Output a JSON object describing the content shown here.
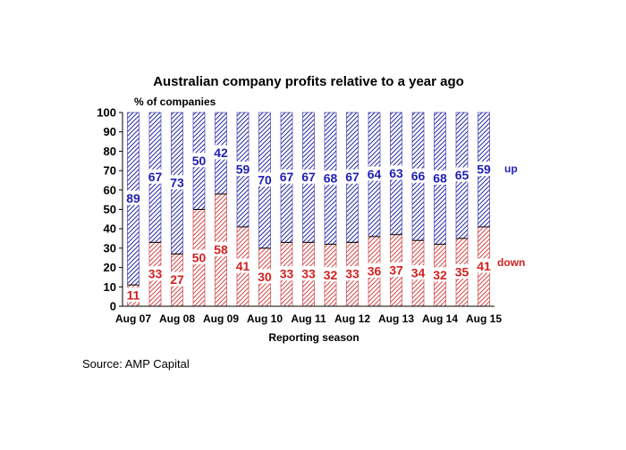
{
  "chart_data": {
    "type": "bar",
    "stacked": true,
    "title": "Australian company profits relative to a year ago",
    "ylabel": "% of companies",
    "xlabel": "Reporting season",
    "ylim": [
      0,
      100
    ],
    "yticks": [
      0,
      10,
      20,
      30,
      40,
      50,
      60,
      70,
      80,
      90,
      100
    ],
    "xtick_labels": [
      "Aug 07",
      "Aug 08",
      "Aug 09",
      "Aug 10",
      "Aug 11",
      "Aug 12",
      "Aug 13",
      "Aug 14",
      "Aug 15"
    ],
    "bar_count": 17,
    "series": [
      {
        "name": "down",
        "color": "#d42020",
        "values": [
          11,
          33,
          27,
          50,
          58,
          41,
          30,
          33,
          33,
          32,
          33,
          36,
          37,
          34,
          32,
          35,
          41
        ]
      },
      {
        "name": "up",
        "color": "#1f1fb4",
        "values": [
          89,
          67,
          73,
          50,
          42,
          59,
          70,
          67,
          67,
          68,
          67,
          64,
          63,
          66,
          68,
          65,
          59
        ]
      }
    ],
    "legend": [
      "up",
      "down"
    ],
    "legend_placement": "right"
  },
  "source": "Source: AMP Capital"
}
